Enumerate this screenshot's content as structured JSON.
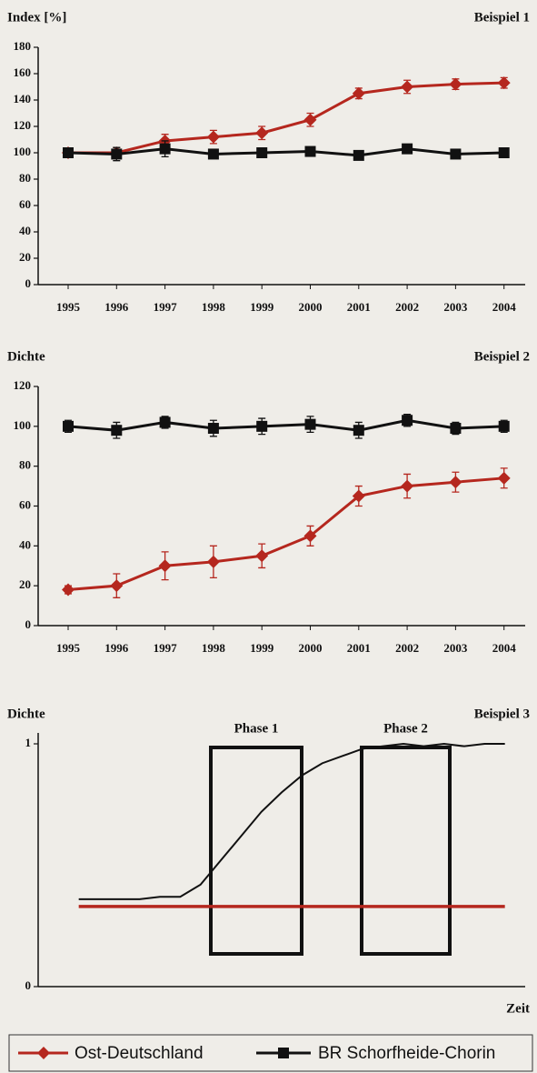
{
  "chart_data": [
    {
      "type": "line",
      "title": "Index [%]",
      "subtitle": "Beispiel 1",
      "categories": [
        "1995",
        "1996",
        "1997",
        "1998",
        "1999",
        "2000",
        "2001",
        "2002",
        "2003",
        "2004"
      ],
      "ylim": [
        0,
        180
      ],
      "yticks": [
        0,
        20,
        40,
        60,
        80,
        100,
        120,
        140,
        160,
        180
      ],
      "series": [
        {
          "name": "Ost-Deutschland",
          "color": "#b5271e",
          "marker": "diamond",
          "values": [
            100,
            100,
            109,
            112,
            115,
            125,
            145,
            150,
            152,
            153
          ],
          "errors": [
            0,
            4,
            5,
            5,
            5,
            5,
            4,
            5,
            4,
            4
          ]
        },
        {
          "name": "BR Schorfheide-Chorin",
          "color": "#111111",
          "marker": "square",
          "values": [
            100,
            99,
            103,
            99,
            100,
            101,
            98,
            103,
            99,
            100
          ],
          "errors": [
            3,
            5,
            6,
            3,
            3,
            3,
            3,
            3,
            3,
            3
          ]
        }
      ]
    },
    {
      "type": "line",
      "title": "Dichte",
      "subtitle": "Beispiel 2",
      "categories": [
        "1995",
        "1996",
        "1997",
        "1998",
        "1999",
        "2000",
        "2001",
        "2002",
        "2003",
        "2004"
      ],
      "ylim": [
        0,
        120
      ],
      "yticks": [
        0,
        20,
        40,
        60,
        80,
        100,
        120
      ],
      "series": [
        {
          "color": "#b5271e",
          "marker": "diamond",
          "values": [
            18,
            20,
            30,
            32,
            35,
            45,
            65,
            70,
            72,
            74
          ],
          "errors": [
            2,
            6,
            7,
            8,
            6,
            5,
            5,
            6,
            5,
            5
          ]
        },
        {
          "color": "#111111",
          "marker": "square",
          "values": [
            100,
            98,
            102,
            99,
            100,
            101,
            98,
            103,
            99,
            100
          ],
          "errors": [
            3,
            4,
            3,
            4,
            4,
            4,
            4,
            3,
            3,
            3
          ]
        }
      ]
    },
    {
      "type": "curve",
      "title": "Dichte",
      "subtitle": "Beispiel 3",
      "xlabel": "Zeit",
      "phases": [
        "Phase 1",
        "Phase 2"
      ],
      "x": [
        0,
        1,
        2,
        3,
        4,
        5,
        6,
        7,
        8,
        9,
        10,
        11,
        12,
        13,
        14,
        15,
        16,
        17,
        18,
        19,
        20,
        21
      ],
      "xlim": [
        -2,
        22
      ],
      "ylim": [
        0,
        1
      ],
      "yticks": [
        0,
        1
      ],
      "series": [
        {
          "color": "#b5271e",
          "values": [
            0.33,
            0.33,
            0.33,
            0.33,
            0.33,
            0.33,
            0.33,
            0.33,
            0.33,
            0.33,
            0.33,
            0.33,
            0.33,
            0.33,
            0.33,
            0.33,
            0.33,
            0.33,
            0.33,
            0.33,
            0.33,
            0.33
          ]
        },
        {
          "color": "#111111",
          "values": [
            0.36,
            0.36,
            0.36,
            0.36,
            0.37,
            0.37,
            0.42,
            0.52,
            0.62,
            0.72,
            0.8,
            0.87,
            0.92,
            0.95,
            0.98,
            0.99,
            1,
            0.99,
            1,
            0.99,
            1,
            1
          ]
        }
      ]
    }
  ]
}
